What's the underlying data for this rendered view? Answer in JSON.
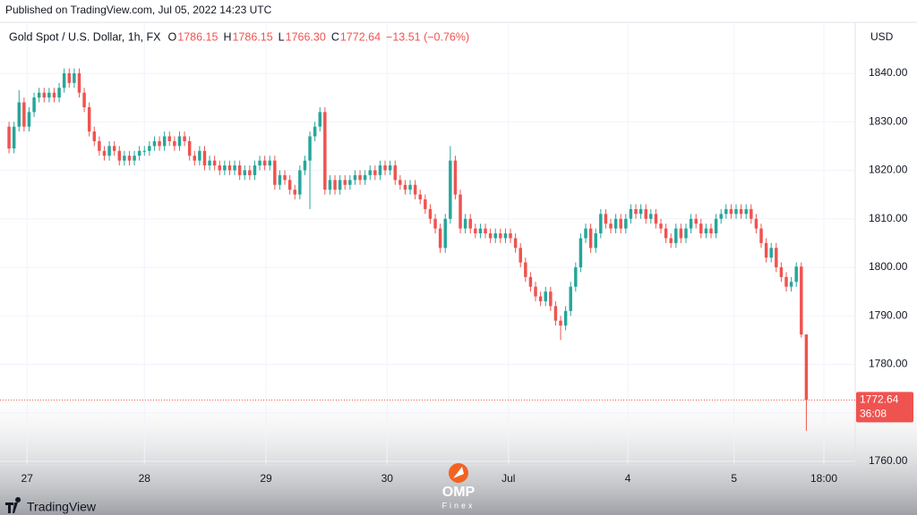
{
  "chart_data": {
    "type": "candlestick",
    "published": "Published on TradingView.com, Jul 05, 2022 14:23 UTC",
    "legend": {
      "symbol": "Gold Spot / U.S. Dollar, 1h, FX",
      "ohlc_labels": [
        "O",
        "H",
        "L",
        "C"
      ],
      "ohlc_values": [
        "1786.15",
        "1786.15",
        "1766.30",
        "1772.64"
      ],
      "change": "−13.51 (−0.76%)"
    },
    "currency": "USD",
    "last_price_label": "1772.64",
    "countdown": "36:08",
    "branding": "TradingView",
    "watermark": [
      "OMP",
      "Finex"
    ],
    "up_color": "#26a69a",
    "down_color": "#ef5350",
    "xlim": [
      -1.8,
      168.75
    ],
    "xticks": [
      {
        "value": 3.6,
        "label": "27"
      },
      {
        "value": 27,
        "label": "28"
      },
      {
        "value": 51.25,
        "label": "29"
      },
      {
        "value": 75.4,
        "label": "30"
      },
      {
        "value": 99.6,
        "label": "Jul"
      },
      {
        "value": 123.4,
        "label": "4"
      },
      {
        "value": 144.6,
        "label": "5"
      },
      {
        "value": 162.5,
        "label": "18:00"
      }
    ],
    "ylim": [
      1759.26,
      1850.5
    ],
    "yticks": [
      {
        "value": 1760,
        "label": "1760.00"
      },
      {
        "value": 1770,
        "label": "1770.00"
      },
      {
        "value": 1780,
        "label": "1780.00"
      },
      {
        "value": 1790,
        "label": "1790.00"
      },
      {
        "value": 1800,
        "label": "1800.00"
      },
      {
        "value": 1810,
        "label": "1810.00"
      },
      {
        "value": 1820,
        "label": "1820.00"
      },
      {
        "value": 1830,
        "label": "1830.00"
      },
      {
        "value": 1840,
        "label": "1840.00"
      }
    ],
    "grid": true,
    "open": [
      1829,
      1824.5,
      1829,
      1834,
      1829,
      1832,
      1835,
      1836,
      1835,
      1836,
      1835,
      1837,
      1840,
      1838,
      1840,
      1836,
      1833,
      1828,
      1826,
      1824,
      1823,
      1825,
      1824,
      1822,
      1823,
      1822,
      1823,
      1824,
      1824,
      1825,
      1826,
      1825,
      1827,
      1826,
      1825,
      1827,
      1826,
      1823,
      1822,
      1824,
      1821,
      1822,
      1821,
      1820,
      1821,
      1820,
      1821,
      1819,
      1820,
      1819,
      1821,
      1822,
      1821,
      1822,
      1817,
      1819,
      1818,
      1816,
      1815,
      1820,
      1822,
      1827,
      1829,
      1832,
      1816,
      1818,
      1816,
      1818,
      1817,
      1818,
      1819,
      1818,
      1819,
      1820,
      1819,
      1821,
      1820,
      1821,
      1818,
      1817,
      1816,
      1817,
      1815,
      1814,
      1812,
      1810,
      1808,
      1804,
      1810,
      1822,
      1815,
      1808,
      1810,
      1808,
      1807,
      1808,
      1807,
      1806,
      1807,
      1806,
      1807,
      1806,
      1804,
      1801,
      1798,
      1796,
      1794,
      1793,
      1795,
      1792,
      1789,
      1788,
      1791,
      1796,
      1800,
      1806,
      1808,
      1804,
      1807,
      1811,
      1809,
      1808,
      1810,
      1808,
      1810,
      1812,
      1811,
      1812,
      1810,
      1811,
      1809,
      1808,
      1806,
      1805,
      1808,
      1806,
      1808,
      1810,
      1809,
      1807,
      1808,
      1807,
      1810,
      1811,
      1812,
      1811,
      1812,
      1811,
      1812,
      1810,
      1808,
      1805,
      1802,
      1804,
      1800,
      1798,
      1796,
      1797,
      1800.15,
      1786.15
    ],
    "high": [
      1830,
      1830,
      1836.5,
      1835,
      1833,
      1836,
      1837,
      1837,
      1837,
      1837,
      1838,
      1841,
      1841,
      1841,
      1841,
      1837,
      1834,
      1829,
      1827,
      1825,
      1826,
      1826,
      1825,
      1824,
      1824,
      1824,
      1825,
      1825,
      1826,
      1827,
      1827,
      1828,
      1828,
      1827,
      1828,
      1828,
      1827,
      1824,
      1825,
      1825,
      1823,
      1823,
      1822,
      1822,
      1822,
      1822,
      1822,
      1821,
      1821,
      1822,
      1823,
      1823,
      1823,
      1823,
      1820,
      1820,
      1819,
      1817,
      1821,
      1823,
      1828,
      1830,
      1833,
      1833,
      1819,
      1819,
      1819,
      1819,
      1819,
      1820,
      1820,
      1820,
      1821,
      1821,
      1822,
      1822,
      1822,
      1822,
      1819,
      1818,
      1818,
      1818,
      1816,
      1815,
      1813,
      1811,
      1809,
      1811,
      1825,
      1823,
      1816,
      1811,
      1811,
      1809,
      1809,
      1809,
      1808,
      1808,
      1808,
      1808,
      1808,
      1807,
      1805,
      1802,
      1799,
      1797,
      1795,
      1796,
      1796,
      1793,
      1790,
      1792,
      1797,
      1801,
      1807,
      1809,
      1809,
      1808,
      1812,
      1812,
      1810,
      1811,
      1811,
      1811,
      1813,
      1813,
      1813,
      1813,
      1812,
      1812,
      1810,
      1809,
      1807,
      1809,
      1809,
      1809,
      1811,
      1811,
      1810,
      1809,
      1809,
      1811,
      1812,
      1813,
      1813,
      1813,
      1813,
      1813,
      1813,
      1811,
      1809,
      1806,
      1805,
      1805,
      1801,
      1799,
      1798,
      1801,
      1801,
      1786.15
    ],
    "low": [
      1823.5,
      1823.5,
      1828,
      1828,
      1828,
      1831,
      1834,
      1834,
      1834,
      1834,
      1834,
      1836,
      1837,
      1837,
      1835,
      1832,
      1827,
      1825,
      1823,
      1822,
      1822,
      1823,
      1821,
      1821,
      1821,
      1821,
      1822,
      1823,
      1823,
      1824,
      1824,
      1824,
      1825,
      1824,
      1824,
      1825,
      1822,
      1821,
      1821,
      1820,
      1820,
      1820,
      1819,
      1819,
      1819,
      1819,
      1818,
      1818,
      1818,
      1818,
      1820,
      1820,
      1820,
      1816,
      1816,
      1817,
      1815,
      1814,
      1814,
      1819,
      1812,
      1826,
      1828,
      1815,
      1815,
      1815,
      1815,
      1816,
      1816,
      1817,
      1817,
      1817,
      1818,
      1818,
      1818,
      1819,
      1819,
      1817,
      1816,
      1815,
      1815,
      1814,
      1813,
      1811,
      1809,
      1807,
      1803,
      1803,
      1809,
      1814,
      1807,
      1807,
      1807,
      1806,
      1806,
      1806,
      1805,
      1805,
      1805,
      1805,
      1805,
      1803,
      1800,
      1797,
      1795,
      1793,
      1792,
      1792,
      1791,
      1788,
      1785,
      1787,
      1790,
      1795,
      1799,
      1805,
      1803,
      1803,
      1806,
      1808,
      1807,
      1807,
      1807,
      1807,
      1809,
      1810,
      1810,
      1809,
      1809,
      1808,
      1807,
      1805,
      1804,
      1804,
      1805,
      1805,
      1807,
      1808,
      1806,
      1806,
      1806,
      1806,
      1809,
      1810,
      1810,
      1810,
      1810,
      1810,
      1809,
      1807,
      1804,
      1801,
      1801,
      1799,
      1797,
      1795,
      1795,
      1796,
      1785.5,
      1766.3
    ],
    "close": [
      1824.5,
      1829,
      1834,
      1829,
      1832,
      1835,
      1836,
      1835,
      1836,
      1835,
      1837,
      1840,
      1838,
      1840,
      1836,
      1833,
      1828,
      1826,
      1824,
      1823,
      1825,
      1824,
      1822,
      1823,
      1822,
      1823,
      1824,
      1824,
      1825,
      1826,
      1825,
      1827,
      1826,
      1825,
      1827,
      1826,
      1823,
      1822,
      1824,
      1821,
      1822,
      1821,
      1820,
      1821,
      1820,
      1821,
      1819,
      1820,
      1819,
      1821,
      1822,
      1821,
      1822,
      1817,
      1819,
      1818,
      1816,
      1815,
      1820,
      1822,
      1827,
      1829,
      1832,
      1816,
      1818,
      1816,
      1818,
      1817,
      1818,
      1819,
      1818,
      1819,
      1820,
      1819,
      1821,
      1820,
      1821,
      1818,
      1817,
      1816,
      1817,
      1815,
      1814,
      1812,
      1810,
      1808,
      1804,
      1810,
      1822,
      1815,
      1808,
      1810,
      1808,
      1807,
      1808,
      1807,
      1806,
      1807,
      1806,
      1807,
      1806,
      1804,
      1801,
      1798,
      1796,
      1794,
      1793,
      1795,
      1792,
      1789,
      1788,
      1791,
      1796,
      1800,
      1806,
      1808,
      1804,
      1807,
      1811,
      1809,
      1808,
      1810,
      1808,
      1810,
      1812,
      1811,
      1812,
      1810,
      1811,
      1809,
      1808,
      1806,
      1805,
      1808,
      1806,
      1808,
      1810,
      1809,
      1807,
      1808,
      1807,
      1810,
      1811,
      1812,
      1811,
      1812,
      1811,
      1812,
      1810,
      1808,
      1805,
      1802,
      1804,
      1800,
      1798,
      1796,
      1797,
      1800.15,
      1786.15,
      1772.64
    ]
  }
}
